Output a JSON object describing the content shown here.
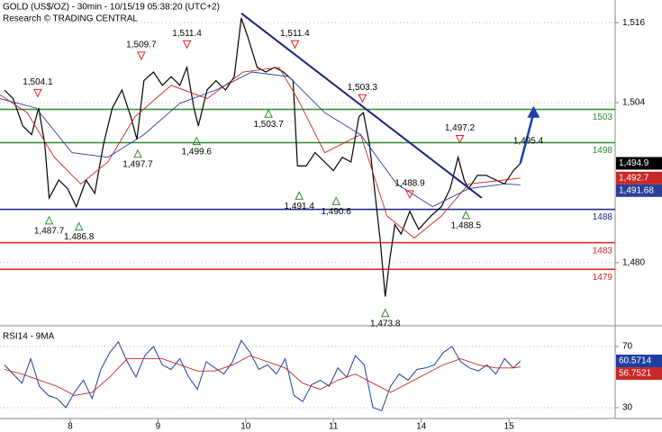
{
  "chart_data": [
    {
      "type": "line",
      "title": "GOLD (US$/OZ) - 30min - 10/15/19 05:38:20 (UTC+2)",
      "subtitle": "Research © TRADING CENTRAL",
      "xlim": [
        0.2,
        7.21
      ],
      "ylim": [
        1470.8,
        1519.4
      ],
      "yticks": [
        {
          "value": 1516,
          "label": "1,516"
        },
        {
          "value": 1504,
          "label": "1,504"
        },
        {
          "value": 1480,
          "label": "1,480"
        }
      ],
      "grid": true,
      "series": [
        {
          "name": "price",
          "color": "#000000",
          "width": 1.2,
          "last_label": "1,494.9",
          "x": [
            0.25,
            0.35,
            0.46,
            0.56,
            0.64,
            0.71,
            0.76,
            0.87,
            0.97,
            1.07,
            1.18,
            1.28,
            1.38,
            1.48,
            1.59,
            1.69,
            1.76,
            1.84,
            1.95,
            2.05,
            2.15,
            2.25,
            2.33,
            2.41,
            2.46,
            2.56,
            2.66,
            2.77,
            2.87,
            2.95,
            3.02,
            3.13,
            3.23,
            3.33,
            3.43,
            3.54,
            3.59,
            3.69,
            3.79,
            3.9,
            4.0,
            4.1,
            4.2,
            4.29,
            4.34,
            4.41,
            4.49,
            4.53,
            4.59,
            4.64,
            4.7,
            4.77,
            4.87,
            4.97,
            5.11,
            5.23,
            5.33,
            5.42,
            5.49,
            5.54,
            5.64,
            5.74,
            5.85,
            5.95,
            6.05,
            6.13
          ],
          "values": [
            1505.9,
            1504.6,
            1500.5,
            1499.2,
            1503.2,
            1497.8,
            1489.7,
            1492.4,
            1491.1,
            1488.4,
            1492.4,
            1490.4,
            1497.8,
            1503.2,
            1505.9,
            1501.9,
            1498.5,
            1507.3,
            1508.6,
            1506.6,
            1507.9,
            1506.6,
            1509.3,
            1503.2,
            1500.5,
            1505.9,
            1507.3,
            1505.9,
            1507.9,
            1516.7,
            1514.0,
            1509.3,
            1508.6,
            1509.3,
            1508.6,
            1507.3,
            1494.5,
            1494.5,
            1496.5,
            1495.1,
            1493.8,
            1495.8,
            1495.1,
            1501.9,
            1502.5,
            1497.8,
            1488.4,
            1483.7,
            1474.9,
            1480.3,
            1485.7,
            1484.3,
            1487.7,
            1485.0,
            1487.0,
            1488.4,
            1491.1,
            1495.8,
            1492.4,
            1491.1,
            1493.1,
            1493.1,
            1492.4,
            1491.8,
            1493.8,
            1494.9
          ]
        },
        {
          "name": "ma-fast",
          "color": "#c62828",
          "width": 0.9,
          "last_label": "1,492.7",
          "x": [
            0.2,
            0.51,
            0.82,
            1.12,
            1.43,
            1.74,
            2.15,
            2.56,
            2.97,
            3.38,
            3.59,
            3.9,
            4.31,
            4.61,
            4.92,
            5.23,
            5.54,
            5.95,
            6.13
          ],
          "values": [
            1505.2,
            1502.5,
            1495.8,
            1491.8,
            1495.1,
            1501.9,
            1506.6,
            1504.6,
            1508.6,
            1509.3,
            1504.6,
            1496.5,
            1499.2,
            1487.0,
            1483.7,
            1487.0,
            1491.8,
            1492.4,
            1492.7
          ]
        },
        {
          "name": "ma-slow",
          "color": "#2a3f9a",
          "width": 0.9,
          "last_label": "1,491.68",
          "x": [
            0.2,
            0.61,
            1.02,
            1.43,
            1.84,
            2.25,
            2.66,
            3.07,
            3.49,
            3.9,
            4.31,
            4.72,
            5.13,
            5.54,
            5.95,
            6.13
          ],
          "values": [
            1504.6,
            1503.2,
            1496.5,
            1495.8,
            1499.2,
            1503.9,
            1505.9,
            1508.6,
            1507.9,
            1502.5,
            1499.2,
            1491.8,
            1488.4,
            1491.1,
            1491.8,
            1491.68
          ]
        }
      ],
      "levels": [
        {
          "value": 1503,
          "color": "#2e8b2e"
        },
        {
          "value": 1498,
          "color": "#2e8b2e"
        },
        {
          "value": 1488,
          "color": "#1a237e"
        },
        {
          "value": 1483,
          "color": "#e02020"
        },
        {
          "value": 1479,
          "color": "#e02020"
        }
      ],
      "trendline": {
        "color": "#1a237e",
        "x": [
          2.95,
          5.69
        ],
        "values": [
          1517.4,
          1489.7
        ]
      },
      "forecast": {
        "color": "#1a3fb0",
        "x": [
          6.13,
          6.28
        ],
        "values": [
          1494.9,
          1503.5
        ]
      },
      "annotations": [
        {
          "kind": "high",
          "x": 0.63,
          "value": 1504.1,
          "label": "1,504.1"
        },
        {
          "kind": "high",
          "x": 1.81,
          "value": 1509.7,
          "label": "1,509.7"
        },
        {
          "kind": "high",
          "x": 2.33,
          "value": 1511.4,
          "label": "1,511.4"
        },
        {
          "kind": "high",
          "x": 3.56,
          "value": 1511.4,
          "label": "1,511.4"
        },
        {
          "kind": "high",
          "x": 4.33,
          "value": 1503.3,
          "label": "1,503.3"
        },
        {
          "kind": "high",
          "x": 4.87,
          "value": 1488.9,
          "label": "1,488.9"
        },
        {
          "kind": "high",
          "x": 5.44,
          "value": 1497.2,
          "label": "1,497.2"
        },
        {
          "kind": "low",
          "x": 0.76,
          "value": 1487.7,
          "label": "1,487.7"
        },
        {
          "kind": "low",
          "x": 1.1,
          "value": 1486.8,
          "label": "1,486.8"
        },
        {
          "kind": "low",
          "x": 1.77,
          "value": 1497.7,
          "label": "1,497.7"
        },
        {
          "kind": "low",
          "x": 2.44,
          "value": 1499.6,
          "label": "1,499.6"
        },
        {
          "kind": "low",
          "x": 3.26,
          "value": 1503.7,
          "label": "1,503.7"
        },
        {
          "kind": "low",
          "x": 3.61,
          "value": 1491.4,
          "label": "1,491.4"
        },
        {
          "kind": "low",
          "x": 4.03,
          "value": 1490.6,
          "label": "1,490.6"
        },
        {
          "kind": "low",
          "x": 4.59,
          "value": 1473.8,
          "label": "1,473.8"
        },
        {
          "kind": "low",
          "x": 5.51,
          "value": 1488.5,
          "label": "1,488.5"
        },
        {
          "kind": "text",
          "x": 6.22,
          "value": 1495.4,
          "label": "1,495.4"
        }
      ]
    },
    {
      "type": "line",
      "title": "RSI14 - 9MA",
      "xlim": [
        0.2,
        7.21
      ],
      "ylim": [
        22.9,
        81.8
      ],
      "yticks": [
        70,
        30
      ],
      "grid": true,
      "xticks": [
        {
          "value": 1,
          "label": "8"
        },
        {
          "value": 2,
          "label": "9"
        },
        {
          "value": 3,
          "label": "10"
        },
        {
          "value": 4,
          "label": "11"
        },
        {
          "value": 5,
          "label": "14"
        },
        {
          "value": 6,
          "label": "15"
        }
      ],
      "series": [
        {
          "name": "rsi",
          "color": "#1f3fa0",
          "width": 1,
          "x": [
            0.25,
            0.35,
            0.45,
            0.55,
            0.65,
            0.75,
            0.85,
            0.95,
            1.05,
            1.15,
            1.25,
            1.35,
            1.45,
            1.55,
            1.65,
            1.75,
            1.85,
            1.95,
            2.05,
            2.15,
            2.25,
            2.35,
            2.45,
            2.55,
            2.65,
            2.75,
            2.85,
            2.95,
            3.05,
            3.15,
            3.25,
            3.35,
            3.45,
            3.55,
            3.65,
            3.75,
            3.85,
            3.95,
            4.05,
            4.15,
            4.25,
            4.35,
            4.45,
            4.55,
            4.65,
            4.75,
            4.85,
            4.95,
            5.05,
            5.15,
            5.25,
            5.35,
            5.45,
            5.55,
            5.65,
            5.75,
            5.85,
            5.95,
            6.05,
            6.13
          ],
          "values": [
            58,
            52,
            46,
            62,
            44,
            38,
            36,
            30,
            40,
            48,
            36,
            55,
            66,
            73,
            60,
            50,
            64,
            70,
            58,
            55,
            62,
            50,
            42,
            60,
            56,
            52,
            60,
            74,
            66,
            55,
            58,
            52,
            62,
            38,
            34,
            45,
            48,
            44,
            56,
            50,
            64,
            58,
            30,
            28,
            44,
            52,
            48,
            55,
            56,
            58,
            66,
            70,
            60,
            56,
            54,
            58,
            52,
            62,
            56,
            60.5714
          ]
        },
        {
          "name": "ma9",
          "color": "#c62828",
          "width": 0.9,
          "x": [
            0.25,
            0.45,
            0.65,
            0.85,
            1.05,
            1.25,
            1.45,
            1.65,
            1.85,
            2.05,
            2.25,
            2.45,
            2.65,
            2.85,
            3.05,
            3.25,
            3.45,
            3.65,
            3.85,
            4.05,
            4.25,
            4.45,
            4.65,
            4.85,
            5.05,
            5.25,
            5.45,
            5.65,
            5.85,
            6.05,
            6.13
          ],
          "values": [
            55,
            52,
            48,
            44,
            38,
            40,
            50,
            62,
            62,
            62,
            58,
            54,
            54,
            58,
            64,
            60,
            56,
            46,
            42,
            48,
            52,
            46,
            40,
            46,
            52,
            58,
            62,
            58,
            56,
            56,
            56.7521
          ]
        }
      ]
    }
  ]
}
